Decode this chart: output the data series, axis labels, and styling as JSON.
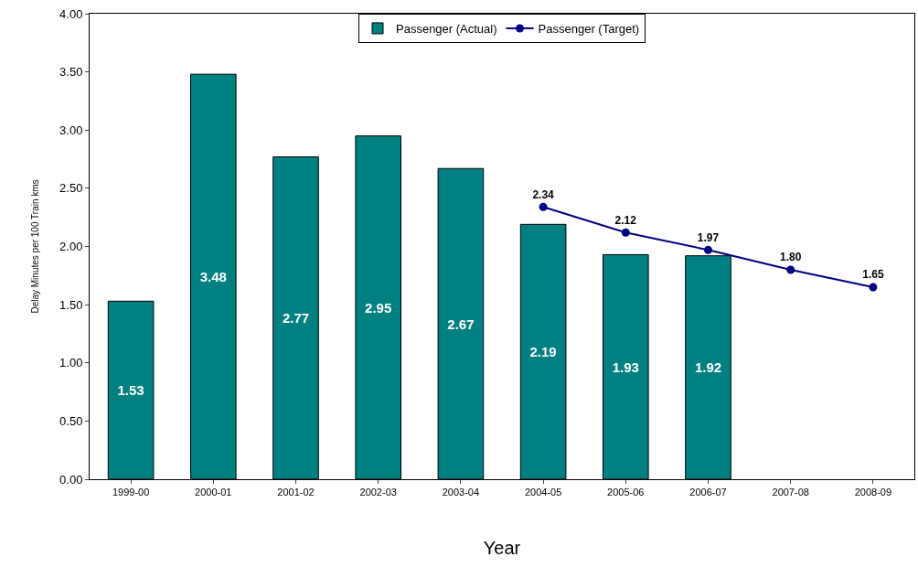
{
  "chart_data": {
    "type": "bar",
    "xlabel": "Year",
    "ylabel": "Delay Minutes per 100 Train kms",
    "categories": [
      "1999-00",
      "2000-01",
      "2001-02",
      "2002-03",
      "2003-04",
      "2004-05",
      "2005-06",
      "2006-07",
      "2007-08",
      "2008-09"
    ],
    "series": [
      {
        "name": "Passenger (Actual)",
        "color": "#008080",
        "values": [
          1.53,
          3.48,
          2.77,
          2.95,
          2.67,
          2.19,
          1.93,
          1.92,
          null,
          null
        ],
        "value_labels": [
          "1.53",
          "3.48",
          "2.77",
          "2.95",
          "2.67",
          "2.19",
          "1.93",
          "1.92",
          null,
          null
        ]
      },
      {
        "name": "Passenger (Target)",
        "type": "line",
        "color": "#000080",
        "marker": "circle",
        "line_style": "solid",
        "values": [
          null,
          null,
          null,
          null,
          null,
          2.34,
          2.12,
          1.97,
          1.8,
          1.65
        ],
        "value_labels": [
          null,
          null,
          null,
          null,
          null,
          "2.34",
          "2.12",
          "1.97",
          "1.80",
          "1.65"
        ]
      }
    ],
    "ylim": [
      0,
      4
    ],
    "yticks": [
      {
        "value": 0,
        "label": "0.00"
      },
      {
        "value": 0.5,
        "label": "0.50"
      },
      {
        "value": 1,
        "label": "1.00"
      },
      {
        "value": 1.5,
        "label": "1.50"
      },
      {
        "value": 2,
        "label": "2.00"
      },
      {
        "value": 2.5,
        "label": "2.50"
      },
      {
        "value": 3,
        "label": "3.00"
      },
      {
        "value": 3.5,
        "label": "3.50"
      },
      {
        "value": 4,
        "label": "4.00"
      }
    ],
    "grid": false,
    "legend": "top"
  }
}
